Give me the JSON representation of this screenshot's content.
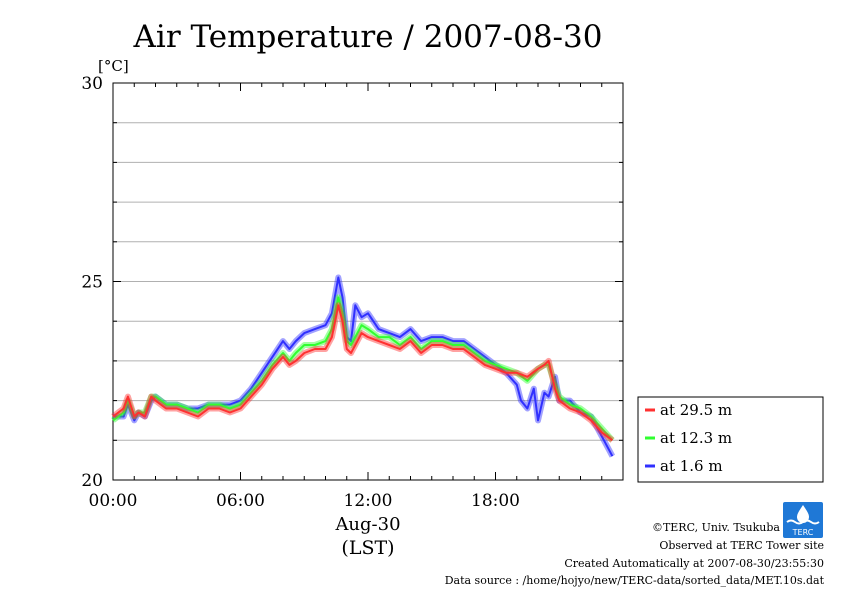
{
  "chart_data": {
    "type": "line",
    "title": "Air Temperature / 2007-08-30",
    "ylabel": "[°C]",
    "xlabel_date": "Aug-30",
    "xlabel_tz": "(LST)",
    "ylim": [
      20,
      30
    ],
    "y_ticks": [
      "20",
      "25",
      "30"
    ],
    "xlim_hours": [
      0,
      24
    ],
    "x_ticks": [
      {
        "hour": 0,
        "label": "00:00"
      },
      {
        "hour": 6,
        "label": "06:00"
      },
      {
        "hour": 12,
        "label": "12:00"
      },
      {
        "hour": 18,
        "label": "18:00"
      }
    ],
    "grid": true,
    "legend_position": "right",
    "series": [
      {
        "name": "at 29.5 m",
        "color": "#ff3030",
        "x": [
          0,
          0.5,
          0.7,
          1.0,
          1.2,
          1.5,
          1.8,
          2.0,
          2.5,
          3.0,
          3.5,
          4.0,
          4.5,
          5.0,
          5.5,
          6.0,
          6.5,
          7.0,
          7.5,
          8.0,
          8.3,
          8.6,
          9.0,
          9.5,
          10.0,
          10.3,
          10.6,
          10.8,
          11.0,
          11.2,
          11.4,
          11.7,
          12.0,
          12.5,
          13.0,
          13.5,
          14.0,
          14.5,
          15.0,
          15.5,
          16.0,
          16.5,
          17.0,
          17.5,
          18.0,
          18.5,
          19.0,
          19.5,
          20.0,
          20.3,
          20.5,
          20.8,
          21.0,
          21.5,
          22.0,
          22.5,
          23.0,
          23.5
        ],
        "values": [
          21.6,
          21.8,
          22.1,
          21.6,
          21.7,
          21.6,
          22.1,
          22.0,
          21.8,
          21.8,
          21.7,
          21.6,
          21.8,
          21.8,
          21.7,
          21.8,
          22.1,
          22.4,
          22.8,
          23.1,
          22.9,
          23.0,
          23.2,
          23.3,
          23.3,
          23.6,
          24.4,
          24.0,
          23.3,
          23.2,
          23.4,
          23.7,
          23.6,
          23.5,
          23.4,
          23.3,
          23.5,
          23.2,
          23.4,
          23.4,
          23.3,
          23.3,
          23.1,
          22.9,
          22.8,
          22.7,
          22.7,
          22.6,
          22.8,
          22.9,
          23.0,
          22.3,
          22.0,
          21.8,
          21.7,
          21.5,
          21.2,
          21.0
        ]
      },
      {
        "name": "at 12.3 m",
        "color": "#30ff30",
        "x": [
          0,
          0.5,
          0.7,
          1.0,
          1.2,
          1.5,
          1.8,
          2.0,
          2.5,
          3.0,
          3.5,
          4.0,
          4.5,
          5.0,
          5.5,
          6.0,
          6.5,
          7.0,
          7.5,
          8.0,
          8.3,
          8.6,
          9.0,
          9.5,
          10.0,
          10.3,
          10.6,
          10.8,
          11.0,
          11.2,
          11.4,
          11.7,
          12.0,
          12.5,
          13.0,
          13.5,
          14.0,
          14.5,
          15.0,
          15.5,
          16.0,
          16.5,
          17.0,
          17.5,
          18.0,
          18.5,
          19.0,
          19.5,
          20.0,
          20.3,
          20.5,
          20.8,
          21.0,
          21.5,
          22.0,
          22.5,
          23.0,
          23.5
        ],
        "values": [
          21.5,
          21.7,
          22.0,
          21.6,
          21.7,
          21.7,
          22.1,
          22.1,
          21.9,
          21.9,
          21.8,
          21.7,
          21.9,
          21.9,
          21.8,
          21.9,
          22.2,
          22.5,
          22.9,
          23.2,
          23.0,
          23.2,
          23.4,
          23.4,
          23.5,
          23.8,
          24.6,
          24.2,
          23.5,
          23.4,
          23.6,
          23.9,
          23.8,
          23.6,
          23.6,
          23.4,
          23.6,
          23.3,
          23.5,
          23.5,
          23.4,
          23.4,
          23.2,
          23.0,
          22.9,
          22.8,
          22.7,
          22.5,
          22.8,
          22.9,
          22.9,
          22.4,
          22.1,
          21.9,
          21.8,
          21.6,
          21.3,
          21.0
        ]
      },
      {
        "name": "at 1.6 m",
        "color": "#3030ff",
        "x": [
          0,
          0.5,
          0.7,
          1.0,
          1.2,
          1.5,
          1.8,
          2.0,
          2.5,
          3.0,
          3.5,
          4.0,
          4.5,
          5.0,
          5.5,
          6.0,
          6.5,
          7.0,
          7.5,
          8.0,
          8.3,
          8.6,
          9.0,
          9.5,
          10.0,
          10.3,
          10.6,
          10.8,
          11.0,
          11.2,
          11.4,
          11.7,
          12.0,
          12.5,
          13.0,
          13.5,
          14.0,
          14.5,
          15.0,
          15.5,
          16.0,
          16.5,
          17.0,
          17.5,
          18.0,
          18.5,
          19.0,
          19.2,
          19.5,
          19.8,
          20.0,
          20.3,
          20.5,
          20.8,
          21.0,
          21.5,
          22.0,
          22.5,
          23.0,
          23.5
        ],
        "values": [
          21.6,
          21.6,
          21.9,
          21.5,
          21.7,
          21.6,
          22.0,
          22.1,
          21.9,
          21.9,
          21.8,
          21.8,
          21.9,
          21.9,
          21.9,
          22.0,
          22.3,
          22.7,
          23.1,
          23.5,
          23.3,
          23.5,
          23.7,
          23.8,
          23.9,
          24.2,
          25.1,
          24.6,
          23.6,
          23.5,
          24.4,
          24.1,
          24.2,
          23.8,
          23.7,
          23.6,
          23.8,
          23.5,
          23.6,
          23.6,
          23.5,
          23.5,
          23.3,
          23.1,
          22.9,
          22.7,
          22.4,
          22.0,
          21.8,
          22.3,
          21.5,
          22.2,
          22.1,
          22.6,
          22.0,
          22.0,
          21.7,
          21.6,
          21.1,
          20.6
        ]
      }
    ]
  },
  "footer": {
    "copyright": "©TERC, Univ. Tsukuba",
    "observed": "Observed at TERC Tower site",
    "created": "Created Automatically at 2007-08-30/23:55:30",
    "source": "Data source : /home/hojyo/new/TERC-data/sorted_data/MET.10s.dat"
  },
  "logo": {
    "text": "TERC"
  }
}
